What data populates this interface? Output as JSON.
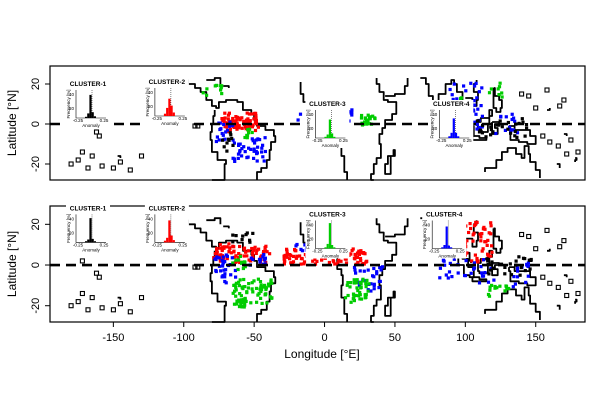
{
  "axes": {
    "y_title": "Latitude [°N]",
    "x_title": "Longitude [°E]",
    "y_ticks": [
      {
        "value": 20,
        "label": "20"
      },
      {
        "value": 0,
        "label": "0"
      },
      {
        "value": -20,
        "label": "-20"
      }
    ],
    "x_ticks": [
      {
        "value": -150,
        "label": "-150"
      },
      {
        "value": -100,
        "label": "-100"
      },
      {
        "value": -50,
        "label": "-50"
      },
      {
        "value": 0,
        "label": "0"
      },
      {
        "value": 50,
        "label": "50"
      },
      {
        "value": 100,
        "label": "100"
      },
      {
        "value": 150,
        "label": "150"
      }
    ],
    "lon_range": [
      -195,
      185
    ],
    "lat_range": [
      -28,
      29
    ]
  },
  "colors": {
    "cluster_1": "#000000",
    "cluster_2": "#ff0000",
    "cluster_3": "#00cc00",
    "cluster_4": "#0000ff"
  },
  "inset_text": {
    "ylabel": "Frequency [%]",
    "xlabel": "Anomaly",
    "xtick_left": "-0.25",
    "xtick_right": "0.25",
    "ytick_low": "20",
    "ytick_high": "40"
  },
  "panels": [
    {
      "insets": [
        {
          "title": "CLUSTER-1",
          "color": "#000000",
          "lon": -168,
          "lat": 10,
          "bars": [
            2,
            8,
            40,
            10,
            3
          ]
        },
        {
          "title": "CLUSTER-2",
          "color": "#ff0000",
          "lon": -112,
          "lat": 11,
          "bars": [
            4,
            14,
            30,
            18,
            6
          ]
        },
        {
          "title": "CLUSTER-3",
          "color": "#00cc00",
          "lon": 2,
          "lat": 0,
          "bars": [
            2,
            6,
            32,
            8,
            2
          ]
        },
        {
          "title": "CLUSTER-4",
          "color": "#0000ff",
          "lon": 90,
          "lat": 0,
          "bars": [
            3,
            9,
            34,
            9,
            3
          ]
        }
      ],
      "clusters": [
        {
          "color": "#ff0000",
          "regions": [
            [
              -60,
              2,
              12,
              5,
              55
            ],
            [
              -68,
              1,
              6,
              3,
              20
            ]
          ]
        },
        {
          "color": "#0000ff",
          "regions": [
            [
              -55,
              -12,
              12,
              6,
              40
            ],
            [
              -72,
              -3,
              6,
              5,
              18
            ],
            [
              0,
              5,
              20,
              3,
              45
            ],
            [
              100,
              10,
              12,
              12,
              40
            ],
            [
              128,
              0,
              8,
              6,
              14
            ]
          ]
        },
        {
          "color": "#00cc00",
          "regions": [
            [
              -80,
              18,
              8,
              3,
              10
            ],
            [
              -56,
              -4,
              4,
              4,
              8
            ],
            [
              30,
              3,
              6,
              3,
              22
            ],
            [
              120,
              18,
              5,
              4,
              8
            ],
            [
              95,
              10,
              3,
              4,
              8
            ]
          ]
        },
        {
          "color": "#000000",
          "regions": [
            [
              -70,
              -8,
              4,
              5,
              10
            ],
            [
              125,
              -1,
              18,
              5,
              30
            ]
          ]
        }
      ]
    },
    {
      "insets": [
        {
          "title": "CLUSTER-1",
          "color": "#000000",
          "lon": -168,
          "lat": 18,
          "bars": [
            2,
            5,
            42,
            6,
            2
          ]
        },
        {
          "title": "CLUSTER-2",
          "color": "#ff0000",
          "lon": -112,
          "lat": 18,
          "bars": [
            3,
            8,
            38,
            12,
            4
          ]
        },
        {
          "title": "CLUSTER-3",
          "color": "#00cc00",
          "lon": 2,
          "lat": 15,
          "bars": [
            2,
            8,
            44,
            6,
            2
          ]
        },
        {
          "title": "CLUSTER-4",
          "color": "#0000ff",
          "lon": 85,
          "lat": 15,
          "bars": [
            2,
            6,
            38,
            5,
            2
          ]
        }
      ],
      "clusters": [
        {
          "color": "#ff0000",
          "regions": [
            [
              -60,
              6,
              20,
              4,
              70
            ],
            [
              0,
              5,
              30,
              4,
              110
            ],
            [
              108,
              12,
              10,
              10,
              50
            ],
            [
              -72,
              9,
              6,
              3,
              12
            ]
          ]
        },
        {
          "color": "#0000ff",
          "regions": [
            [
              -72,
              -1,
              8,
              7,
              30
            ],
            [
              -48,
              3,
              6,
              3,
              14
            ],
            [
              -15,
              9,
              8,
              2,
              12
            ],
            [
              30,
              -6,
              10,
              6,
              30
            ],
            [
              100,
              -2,
              20,
              6,
              30
            ],
            [
              138,
              -4,
              6,
              6,
              14
            ]
          ]
        },
        {
          "color": "#00cc00",
          "regions": [
            [
              -52,
              -13,
              14,
              7,
              80
            ],
            [
              22,
              -12,
              10,
              6,
              40
            ],
            [
              122,
              -12,
              8,
              3,
              14
            ],
            [
              -62,
              2,
              5,
              4,
              12
            ]
          ]
        },
        {
          "color": "#000000",
          "regions": [
            [
              -60,
              15,
              8,
              3,
              10
            ],
            [
              130,
              0,
              16,
              5,
              26
            ]
          ]
        }
      ]
    }
  ]
}
